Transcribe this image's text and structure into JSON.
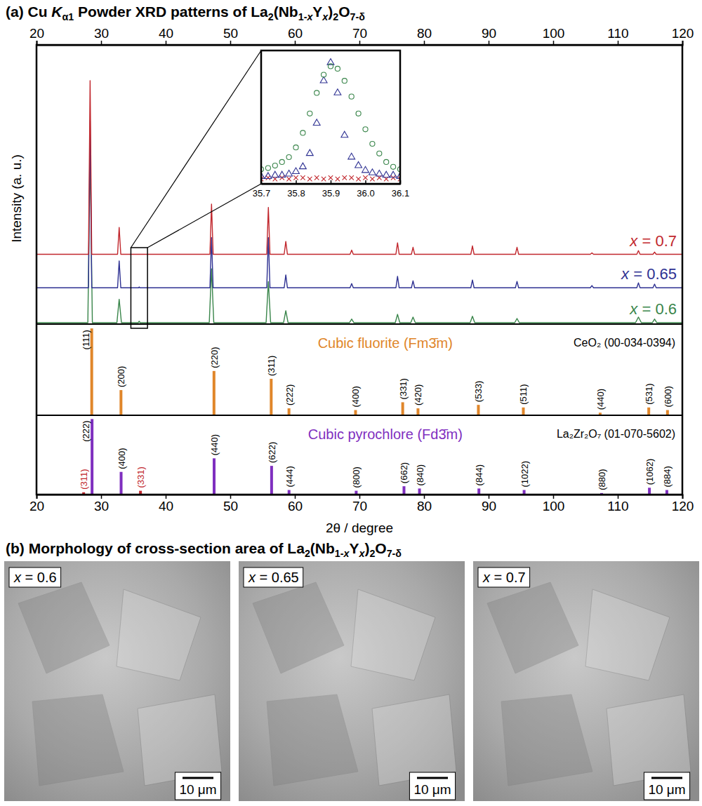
{
  "chart_data": [
    {
      "type": "line",
      "ylabel": "Intensity (a. u.)",
      "xlim": [
        20,
        120
      ],
      "xticks": [
        20,
        30,
        40,
        50,
        60,
        70,
        80,
        90,
        100,
        110,
        120
      ],
      "ylim": [
        0,
        10
      ],
      "tick_labels": "x",
      "series": [
        {
          "name": "x = 0.7",
          "color": "#c1272d",
          "x": [
            20,
            28.05,
            28.3,
            28.55,
            32.55,
            32.8,
            33.05,
            46.85,
            47.1,
            47.35,
            55.65,
            55.9,
            56.15,
            58.35,
            58.6,
            58.85,
            68.55,
            68.8,
            69.05,
            75.65,
            75.9,
            76.15,
            78.05,
            78.3,
            78.55,
            87.25,
            87.5,
            87.75,
            94.15,
            94.4,
            94.65,
            105.75,
            106.0,
            106.25,
            112.95,
            113.2,
            113.45,
            115.45,
            115.7,
            115.95,
            120
          ],
          "values": [
            2.5,
            2.5,
            8.72,
            2.5,
            2.5,
            3.46,
            2.5,
            2.5,
            4.3,
            2.5,
            2.5,
            4.18,
            2.5,
            2.5,
            2.96,
            2.5,
            2.5,
            2.65,
            2.5,
            2.5,
            2.91,
            2.5,
            2.5,
            2.75,
            2.5,
            2.5,
            2.8,
            2.5,
            2.5,
            2.75,
            2.5,
            2.5,
            2.55,
            2.5,
            2.5,
            2.63,
            2.5,
            2.5,
            2.58,
            2.5,
            2.5
          ]
        },
        {
          "name": "x = 0.65",
          "color": "#2e3192",
          "x": [
            20,
            28.05,
            28.3,
            28.55,
            32.55,
            32.8,
            33.05,
            35.8,
            35.9,
            36.0,
            46.85,
            47.1,
            47.35,
            55.65,
            55.9,
            56.15,
            58.35,
            58.6,
            58.85,
            68.55,
            68.8,
            69.05,
            75.65,
            75.9,
            76.15,
            78.05,
            78.3,
            78.55,
            87.25,
            87.5,
            87.75,
            94.15,
            94.4,
            94.65,
            105.75,
            106.0,
            106.25,
            112.95,
            113.2,
            113.45,
            115.45,
            115.7,
            115.95,
            120
          ],
          "values": [
            1.3,
            1.3,
            7.3,
            1.3,
            1.3,
            2.26,
            1.3,
            1.3,
            1.33,
            1.3,
            1.3,
            3.1,
            1.3,
            1.3,
            3.1,
            1.3,
            1.3,
            1.76,
            1.3,
            1.3,
            1.45,
            1.3,
            1.3,
            1.71,
            1.3,
            1.3,
            1.55,
            1.3,
            1.3,
            1.58,
            1.3,
            1.3,
            1.53,
            1.3,
            1.3,
            1.38,
            1.3,
            1.3,
            1.48,
            1.3,
            1.3,
            1.43,
            1.3,
            1.3
          ]
        },
        {
          "name": "x = 0.6",
          "color": "#39854a",
          "x": [
            20,
            27.95,
            28.3,
            28.65,
            32.45,
            32.8,
            33.15,
            35.75,
            35.9,
            36.05,
            46.75,
            47.1,
            47.45,
            55.55,
            55.9,
            56.25,
            58.25,
            58.6,
            58.95,
            68.45,
            68.8,
            69.15,
            75.55,
            75.9,
            76.25,
            77.95,
            78.3,
            78.65,
            87.15,
            87.5,
            87.85,
            94.05,
            94.4,
            94.75,
            112.75,
            113.2,
            113.65,
            115.35,
            115.7,
            116.05,
            120
          ],
          "values": [
            0.05,
            0.05,
            6.2,
            0.05,
            0.05,
            0.89,
            0.05,
            0.05,
            0.1,
            0.05,
            0.05,
            1.98,
            0.05,
            0.05,
            1.52,
            0.05,
            0.05,
            0.48,
            0.05,
            0.05,
            0.18,
            0.05,
            0.05,
            0.35,
            0.05,
            0.05,
            0.25,
            0.05,
            0.05,
            0.28,
            0.05,
            0.05,
            0.2,
            0.05,
            0.05,
            0.25,
            0.05,
            0.05,
            0.18,
            0.05,
            0.05
          ]
        }
      ]
    },
    {
      "type": "bar",
      "title": "Cubic fluorite (Fm3̄m)",
      "subtitle": "CeO₂ (00-034-0394)",
      "color": "#e0862a",
      "xlim": [
        20,
        120
      ],
      "ylim": [
        0,
        105
      ],
      "tick_labels": false,
      "x": [
        28.55,
        33.08,
        47.48,
        56.34,
        59.09,
        69.4,
        76.7,
        79.07,
        88.42,
        95.38,
        107.27,
        114.8,
        117.7
      ],
      "values": [
        100,
        29,
        51,
        42,
        8,
        6,
        15,
        8,
        12,
        9,
        3,
        9,
        6
      ],
      "labels": [
        "(111)",
        "(200)",
        "(220)",
        "(311)",
        "(222)",
        "(400)",
        "(331)",
        "(420)",
        "(533)",
        "(511)",
        "(440)",
        "(531)",
        "(600)"
      ]
    },
    {
      "type": "bar",
      "title": "Cubic pyrochlore (Fd3̄m)",
      "subtitle": "La₂Zr₂O₇ (01-070-5602)",
      "xlabel": "2θ / degree",
      "color": "#7f2fbf",
      "colors": [
        "#c1272d",
        "#7f2fbf",
        "#7f2fbf",
        "#c1272d",
        "#7f2fbf",
        "#7f2fbf",
        "#7f2fbf",
        "#7f2fbf",
        "#7f2fbf",
        "#7f2fbf",
        "#7f2fbf",
        "#7f2fbf",
        "#7f2fbf",
        "#7f2fbf",
        "#7f2fbf"
      ],
      "xlim": [
        20,
        120
      ],
      "xticks": [
        20,
        30,
        40,
        50,
        60,
        70,
        80,
        90,
        100,
        110,
        120
      ],
      "ylim": [
        0,
        105
      ],
      "tick_labels": "x",
      "x": [
        27.3,
        28.6,
        33.1,
        36.1,
        47.5,
        56.4,
        59.1,
        69.5,
        76.9,
        79.3,
        88.5,
        95.5,
        107.5,
        114.9,
        117.6
      ],
      "values": [
        3,
        100,
        30,
        5,
        48,
        38,
        6,
        5,
        11,
        8,
        8,
        6,
        2,
        9,
        6
      ],
      "labels": [
        "(311)",
        "(222)",
        "(400)",
        "(331)",
        "(440)",
        "(622)",
        "(444)",
        "(800)",
        "(662)",
        "(840)",
        "(844)",
        "(1022)",
        "(880)",
        "(1062)",
        "(884)"
      ]
    },
    {
      "type": "scatter",
      "xlim": [
        35.7,
        36.1
      ],
      "xticks": [
        35.7,
        35.8,
        35.9,
        {
          "value": 36,
          "label": "36.0"
        },
        36.1
      ],
      "ylim": [
        0,
        1.1
      ],
      "tick_labels": "x",
      "x": [
        35.7,
        35.72,
        35.74,
        35.76,
        35.78,
        35.8,
        35.82,
        35.84,
        35.86,
        35.88,
        35.9,
        35.92,
        35.94,
        35.96,
        35.98,
        36.0,
        36.02,
        36.04,
        36.06,
        36.08,
        36.1
      ],
      "series": [
        {
          "name": "x = 0.7",
          "color": "#c1272d",
          "marker": "cross",
          "values": [
            0.04,
            0.05,
            0.04,
            0.05,
            0.04,
            0.05,
            0.05,
            0.04,
            0.05,
            0.04,
            0.05,
            0.04,
            0.05,
            0.05,
            0.04,
            0.05,
            0.04,
            0.05,
            0.04,
            0.05,
            0.04
          ]
        },
        {
          "name": "x = 0.65",
          "color": "#2e3192",
          "marker": "triangle",
          "values": [
            0.06,
            0.06,
            0.07,
            0.07,
            0.08,
            0.1,
            0.14,
            0.25,
            0.5,
            0.85,
            1.0,
            0.75,
            0.4,
            0.22,
            0.15,
            0.11,
            0.09,
            0.08,
            0.07,
            0.07,
            0.06
          ]
        },
        {
          "name": "x = 0.6",
          "color": "#39854a",
          "marker": "circle",
          "values": [
            0.12,
            0.13,
            0.15,
            0.18,
            0.22,
            0.3,
            0.42,
            0.58,
            0.75,
            0.9,
            0.97,
            0.95,
            0.85,
            0.72,
            0.58,
            0.45,
            0.33,
            0.25,
            0.18,
            0.14,
            0.12
          ]
        }
      ]
    }
  ],
  "figure": {
    "title_a": [
      {
        "text": "(a) Cu "
      },
      {
        "text": "K",
        "italic": true
      },
      {
        "text": "α1",
        "sub": true
      },
      {
        "text": " Powder XRD patterns of La"
      },
      {
        "text": "2",
        "sub": true
      },
      {
        "text": "(Nb"
      },
      {
        "text": "1-",
        "sub": true
      },
      {
        "text": "x",
        "sub": true,
        "italic": true
      },
      {
        "text": "Y"
      },
      {
        "text": "x",
        "sub": true,
        "italic": true
      },
      {
        "text": ")"
      },
      {
        "text": "2",
        "sub": true
      },
      {
        "text": "O"
      },
      {
        "text": "7-δ",
        "sub": true
      }
    ],
    "title_b": [
      {
        "text": "(b) Morphology of cross-section area of La"
      },
      {
        "text": "2",
        "sub": true
      },
      {
        "text": "(Nb"
      },
      {
        "text": "1-",
        "sub": true
      },
      {
        "text": "x",
        "sub": true,
        "italic": true
      },
      {
        "text": "Y"
      },
      {
        "text": "x",
        "sub": true,
        "italic": true
      },
      {
        "text": ")"
      },
      {
        "text": "2",
        "sub": true
      },
      {
        "text": "O"
      },
      {
        "text": "7-δ",
        "sub": true
      }
    ],
    "sem_panels": [
      {
        "label": "x = 0.6",
        "scale_bar": "10 μm"
      },
      {
        "label": "x = 0.65",
        "scale_bar": "10 μm"
      },
      {
        "label": "x = 0.7",
        "scale_bar": "10 μm"
      }
    ]
  }
}
